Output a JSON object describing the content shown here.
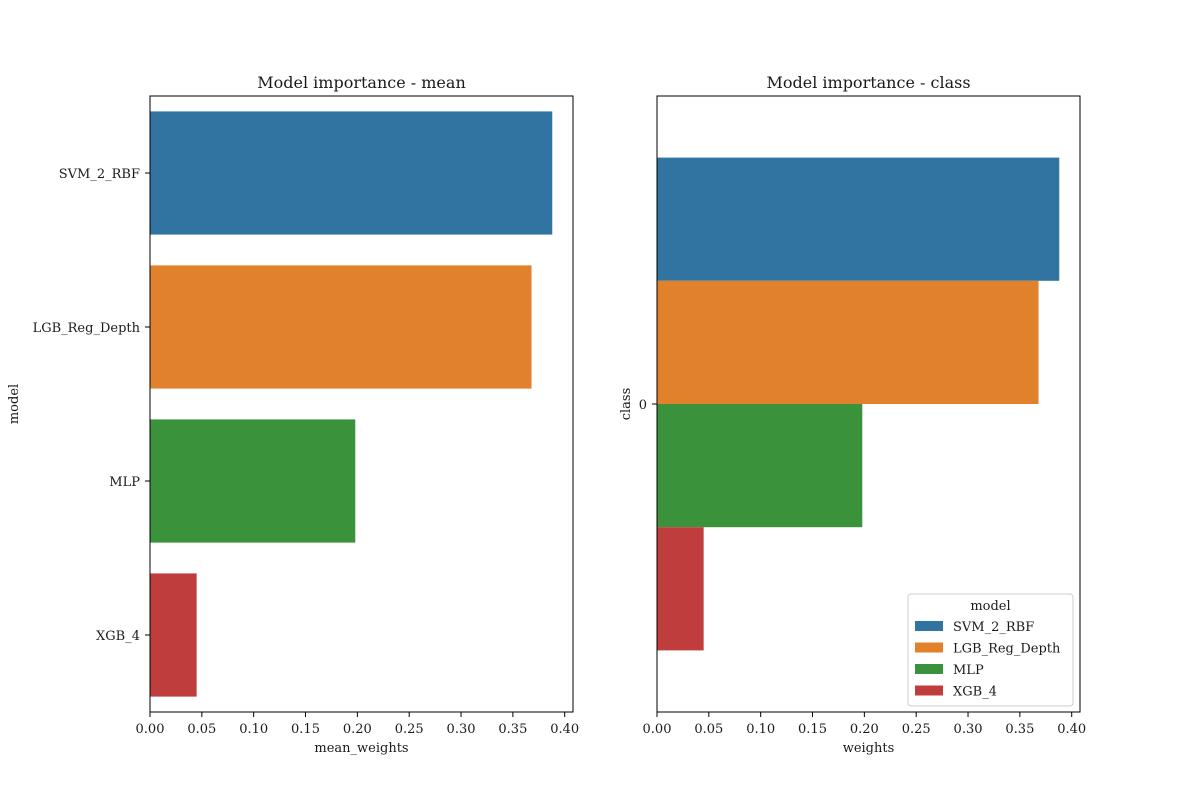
{
  "chart_data": [
    {
      "type": "bar",
      "orientation": "horizontal",
      "title": "Model importance - mean",
      "xlabel": "mean_weights",
      "ylabel": "model",
      "categories": [
        "SVM_2_RBF",
        "LGB_Reg_Depth",
        "MLP",
        "XGB_4"
      ],
      "values": [
        0.388,
        0.368,
        0.198,
        0.045
      ],
      "colors": [
        "#3274a1",
        "#e1812c",
        "#3a923a",
        "#c03d3e"
      ],
      "xlim": [
        0,
        0.408
      ],
      "xticks": [
        "0.00",
        "0.05",
        "0.10",
        "0.15",
        "0.20",
        "0.25",
        "0.30",
        "0.35",
        "0.40"
      ],
      "grid": false,
      "legend": null
    },
    {
      "type": "bar",
      "orientation": "horizontal",
      "title": "Model importance - class",
      "xlabel": "weights",
      "ylabel": "class",
      "categories": [
        "0"
      ],
      "series": [
        {
          "name": "SVM_2_RBF",
          "values": [
            0.388
          ],
          "color": "#3274a1"
        },
        {
          "name": "LGB_Reg_Depth",
          "values": [
            0.368
          ],
          "color": "#e1812c"
        },
        {
          "name": "MLP",
          "values": [
            0.198
          ],
          "color": "#3a923a"
        },
        {
          "name": "XGB_4",
          "values": [
            0.045
          ],
          "color": "#c03d3e"
        }
      ],
      "xlim": [
        0,
        0.408
      ],
      "xticks": [
        "0.00",
        "0.05",
        "0.10",
        "0.15",
        "0.20",
        "0.25",
        "0.30",
        "0.35",
        "0.40"
      ],
      "grid": false,
      "legend": {
        "title": "model",
        "placement": "lower-right"
      }
    }
  ]
}
